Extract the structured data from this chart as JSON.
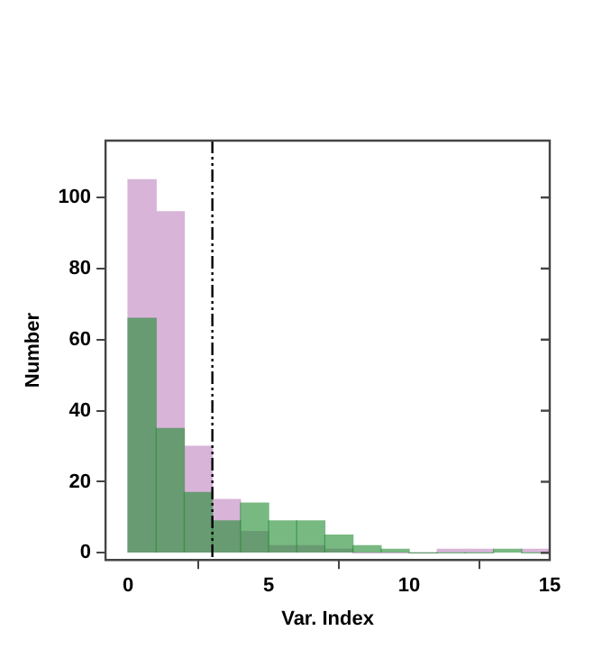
{
  "chart_data": {
    "type": "histogram",
    "xlabel": "Var. Index",
    "ylabel": "Number",
    "bins": [
      0,
      1,
      2,
      3,
      4,
      5,
      6,
      7,
      8,
      9,
      10,
      11,
      12,
      13,
      14,
      15
    ],
    "series": [
      {
        "color": "#d8b4d8",
        "values": [
          105,
          96,
          30,
          15,
          6,
          2,
          2,
          1,
          0,
          0,
          0,
          1,
          1,
          null,
          1
        ]
      },
      {
        "color": "#1e8a2e",
        "values": [
          66,
          35,
          17,
          9,
          14,
          9,
          9,
          5,
          2,
          1,
          0,
          0,
          0,
          1,
          0
        ]
      }
    ],
    "xlim": [
      -0.8,
      15
    ],
    "xticks": [
      0,
      5,
      10,
      15
    ],
    "ylim": [
      -2,
      116
    ],
    "yticks": [
      0,
      20,
      40,
      60,
      80,
      100
    ],
    "ref_lines": [
      {
        "axis": "x",
        "value": 3,
        "color": "#000000",
        "line_style": "dashed"
      }
    ],
    "grid": false,
    "legend": false
  }
}
